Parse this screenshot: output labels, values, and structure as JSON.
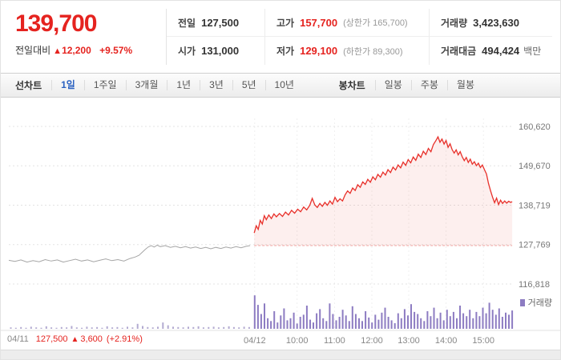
{
  "colors": {
    "red": "#e5231f",
    "blue": "#2b62c1",
    "purple": "#8d7cc2",
    "gray_line": "#a5a5a5"
  },
  "header": {
    "price": "139,700",
    "change_label": "전일대비",
    "change_arrow": "▲",
    "change_value": "12,200",
    "change_percent": "+9.57%",
    "stats": {
      "prev": {
        "label": "전일",
        "value": "127,500"
      },
      "high": {
        "label": "고가",
        "value": "157,700",
        "note": "(상한가 165,700)"
      },
      "volume": {
        "label": "거래량",
        "value": "3,423,630"
      },
      "open": {
        "label": "시가",
        "value": "131,000"
      },
      "low": {
        "label": "저가",
        "value": "129,100",
        "note": "(하한가 89,300)"
      },
      "amount": {
        "label": "거래대금",
        "value": "494,424",
        "unit": "백만"
      }
    }
  },
  "tabs": {
    "line_group_label": "선차트",
    "line_tabs": [
      {
        "label": "1일",
        "active": true
      },
      {
        "label": "1주일"
      },
      {
        "label": "3개월"
      },
      {
        "label": "1년"
      },
      {
        "label": "3년"
      },
      {
        "label": "5년"
      },
      {
        "label": "10년"
      }
    ],
    "candle_group_label": "봉차트",
    "candle_tabs": [
      {
        "label": "일봉"
      },
      {
        "label": "주봉"
      },
      {
        "label": "월봉"
      }
    ]
  },
  "legend": {
    "volume_label": "거래량"
  },
  "bottom_summary": {
    "date": "04/11",
    "close": "127,500",
    "arrow": "▲",
    "change": "3,600",
    "percent": "(+2.91%)"
  },
  "chart_data": {
    "type": "line",
    "title": "",
    "xlabel": "",
    "ylabel": "",
    "ylim": [
      116818,
      160620
    ],
    "grid": true,
    "legend_position": "bottom-right",
    "prev_close": 127500,
    "y_ticks": [
      160620,
      149670,
      138719,
      127769,
      116818
    ],
    "y_tick_labels": [
      "160,620",
      "149,670",
      "138,719",
      "127,769",
      "116,818"
    ],
    "x_ticks": [
      {
        "label": "04/12",
        "f": 0.487
      },
      {
        "label": "10:00",
        "f": 0.571
      },
      {
        "label": "11:00",
        "f": 0.645
      },
      {
        "label": "12:00",
        "f": 0.719
      },
      {
        "label": "13:00",
        "f": 0.792
      },
      {
        "label": "14:00",
        "f": 0.866
      },
      {
        "label": "15:00",
        "f": 0.94
      }
    ],
    "series": [
      {
        "name": "04/11",
        "color": "#a5a5a5",
        "points": [
          [
            0.0,
            123400
          ],
          [
            0.012,
            123100
          ],
          [
            0.024,
            123500
          ],
          [
            0.036,
            122900
          ],
          [
            0.048,
            123300
          ],
          [
            0.06,
            123000
          ],
          [
            0.072,
            123600
          ],
          [
            0.084,
            123200
          ],
          [
            0.096,
            123500
          ],
          [
            0.108,
            122900
          ],
          [
            0.12,
            123300
          ],
          [
            0.132,
            123700
          ],
          [
            0.144,
            123200
          ],
          [
            0.156,
            123500
          ],
          [
            0.168,
            123000
          ],
          [
            0.18,
            123400
          ],
          [
            0.192,
            123800
          ],
          [
            0.204,
            123300
          ],
          [
            0.216,
            123600
          ],
          [
            0.228,
            123200
          ],
          [
            0.24,
            123900
          ],
          [
            0.25,
            124300
          ],
          [
            0.258,
            124800
          ],
          [
            0.264,
            125600
          ],
          [
            0.27,
            126400
          ],
          [
            0.276,
            127100
          ],
          [
            0.282,
            127500
          ],
          [
            0.288,
            127100
          ],
          [
            0.294,
            127600
          ],
          [
            0.3,
            127200
          ],
          [
            0.31,
            127500
          ],
          [
            0.32,
            127000
          ],
          [
            0.33,
            127300
          ],
          [
            0.34,
            126900
          ],
          [
            0.35,
            127200
          ],
          [
            0.36,
            126800
          ],
          [
            0.37,
            127100
          ],
          [
            0.38,
            126700
          ],
          [
            0.39,
            127000
          ],
          [
            0.4,
            126600
          ],
          [
            0.41,
            127000
          ],
          [
            0.42,
            126700
          ],
          [
            0.43,
            127100
          ],
          [
            0.44,
            126800
          ],
          [
            0.45,
            127200
          ],
          [
            0.46,
            126900
          ],
          [
            0.47,
            127300
          ],
          [
            0.478,
            127500
          ]
        ]
      },
      {
        "name": "04/12",
        "color": "#e8302a",
        "fill": "rgba(232,48,42,0.08)",
        "points": [
          [
            0.486,
            131000
          ],
          [
            0.49,
            133000
          ],
          [
            0.494,
            132000
          ],
          [
            0.498,
            134500
          ],
          [
            0.502,
            133500
          ],
          [
            0.506,
            135800
          ],
          [
            0.51,
            134700
          ],
          [
            0.515,
            136000
          ],
          [
            0.52,
            135000
          ],
          [
            0.525,
            136300
          ],
          [
            0.53,
            135500
          ],
          [
            0.536,
            136400
          ],
          [
            0.542,
            135600
          ],
          [
            0.548,
            136800
          ],
          [
            0.554,
            136000
          ],
          [
            0.56,
            137300
          ],
          [
            0.566,
            136500
          ],
          [
            0.572,
            137600
          ],
          [
            0.578,
            136900
          ],
          [
            0.584,
            138200
          ],
          [
            0.59,
            137400
          ],
          [
            0.596,
            138700
          ],
          [
            0.601,
            140600
          ],
          [
            0.606,
            138800
          ],
          [
            0.611,
            138100
          ],
          [
            0.616,
            139200
          ],
          [
            0.621,
            138400
          ],
          [
            0.626,
            139500
          ],
          [
            0.631,
            138700
          ],
          [
            0.636,
            139900
          ],
          [
            0.641,
            139000
          ],
          [
            0.646,
            140900
          ],
          [
            0.651,
            139700
          ],
          [
            0.656,
            140500
          ],
          [
            0.661,
            139900
          ],
          [
            0.666,
            141600
          ],
          [
            0.671,
            142700
          ],
          [
            0.676,
            142000
          ],
          [
            0.681,
            143500
          ],
          [
            0.686,
            142800
          ],
          [
            0.691,
            144400
          ],
          [
            0.696,
            143700
          ],
          [
            0.701,
            145200
          ],
          [
            0.706,
            144500
          ],
          [
            0.711,
            145900
          ],
          [
            0.716,
            145100
          ],
          [
            0.721,
            146600
          ],
          [
            0.726,
            145800
          ],
          [
            0.731,
            147300
          ],
          [
            0.736,
            146500
          ],
          [
            0.741,
            147900
          ],
          [
            0.746,
            147100
          ],
          [
            0.751,
            148600
          ],
          [
            0.756,
            147800
          ],
          [
            0.761,
            149300
          ],
          [
            0.766,
            148500
          ],
          [
            0.771,
            149900
          ],
          [
            0.776,
            149100
          ],
          [
            0.781,
            150700
          ],
          [
            0.786,
            149800
          ],
          [
            0.791,
            151400
          ],
          [
            0.796,
            150500
          ],
          [
            0.801,
            152100
          ],
          [
            0.806,
            151200
          ],
          [
            0.811,
            152900
          ],
          [
            0.816,
            152000
          ],
          [
            0.821,
            153700
          ],
          [
            0.826,
            152800
          ],
          [
            0.831,
            154500
          ],
          [
            0.836,
            153600
          ],
          [
            0.841,
            155600
          ],
          [
            0.846,
            156700
          ],
          [
            0.85,
            157700
          ],
          [
            0.854,
            156200
          ],
          [
            0.858,
            157100
          ],
          [
            0.862,
            155700
          ],
          [
            0.866,
            156700
          ],
          [
            0.87,
            154800
          ],
          [
            0.874,
            155800
          ],
          [
            0.878,
            154200
          ],
          [
            0.882,
            153200
          ],
          [
            0.886,
            154100
          ],
          [
            0.89,
            152700
          ],
          [
            0.894,
            153600
          ],
          [
            0.898,
            152200
          ],
          [
            0.902,
            151100
          ],
          [
            0.906,
            152000
          ],
          [
            0.91,
            150600
          ],
          [
            0.914,
            151500
          ],
          [
            0.918,
            150100
          ],
          [
            0.922,
            150800
          ],
          [
            0.926,
            149700
          ],
          [
            0.93,
            150400
          ],
          [
            0.934,
            149200
          ],
          [
            0.938,
            149900
          ],
          [
            0.942,
            148600
          ],
          [
            0.946,
            147400
          ],
          [
            0.95,
            144800
          ],
          [
            0.954,
            142800
          ],
          [
            0.958,
            141000
          ],
          [
            0.962,
            139400
          ],
          [
            0.966,
            140700
          ],
          [
            0.97,
            138900
          ],
          [
            0.974,
            140100
          ],
          [
            0.978,
            139200
          ],
          [
            0.982,
            139900
          ],
          [
            0.986,
            139300
          ],
          [
            0.99,
            139800
          ],
          [
            0.994,
            139500
          ],
          [
            0.997,
            139700
          ]
        ]
      }
    ],
    "volume_segments": [
      {
        "name": "04/11 volume",
        "from": 0.004,
        "to": 0.476,
        "color": "#b3abd1",
        "heights": [
          0.04,
          0.03,
          0.05,
          0.03,
          0.06,
          0.04,
          0.03,
          0.07,
          0.04,
          0.03,
          0.05,
          0.04,
          0.08,
          0.04,
          0.03,
          0.06,
          0.04,
          0.05,
          0.03,
          0.07,
          0.04,
          0.05,
          0.03,
          0.06,
          0.04,
          0.14,
          0.08,
          0.05,
          0.04,
          0.06,
          0.18,
          0.1,
          0.06,
          0.05,
          0.04,
          0.06,
          0.05,
          0.07,
          0.04,
          0.05,
          0.06,
          0.04,
          0.05,
          0.07,
          0.05,
          0.04,
          0.06,
          0.05
        ]
      },
      {
        "name": "04/12 volume",
        "from": 0.487,
        "to": 0.997,
        "color": "#8d7cc2",
        "heights": [
          0.95,
          0.68,
          0.42,
          0.72,
          0.3,
          0.22,
          0.5,
          0.18,
          0.38,
          0.58,
          0.24,
          0.3,
          0.46,
          0.15,
          0.34,
          0.4,
          0.66,
          0.26,
          0.18,
          0.44,
          0.56,
          0.3,
          0.22,
          0.72,
          0.42,
          0.24,
          0.34,
          0.54,
          0.38,
          0.22,
          0.64,
          0.42,
          0.3,
          0.22,
          0.5,
          0.32,
          0.18,
          0.4,
          0.26,
          0.46,
          0.6,
          0.34,
          0.24,
          0.16,
          0.44,
          0.3,
          0.56,
          0.38,
          0.7,
          0.48,
          0.42,
          0.3,
          0.22,
          0.5,
          0.36,
          0.6,
          0.3,
          0.46,
          0.24,
          0.54,
          0.36,
          0.48,
          0.3,
          0.66,
          0.44,
          0.36,
          0.54,
          0.3,
          0.48,
          0.36,
          0.6,
          0.44,
          0.74,
          0.54,
          0.4,
          0.58,
          0.34,
          0.46,
          0.4,
          0.52
        ]
      }
    ]
  }
}
